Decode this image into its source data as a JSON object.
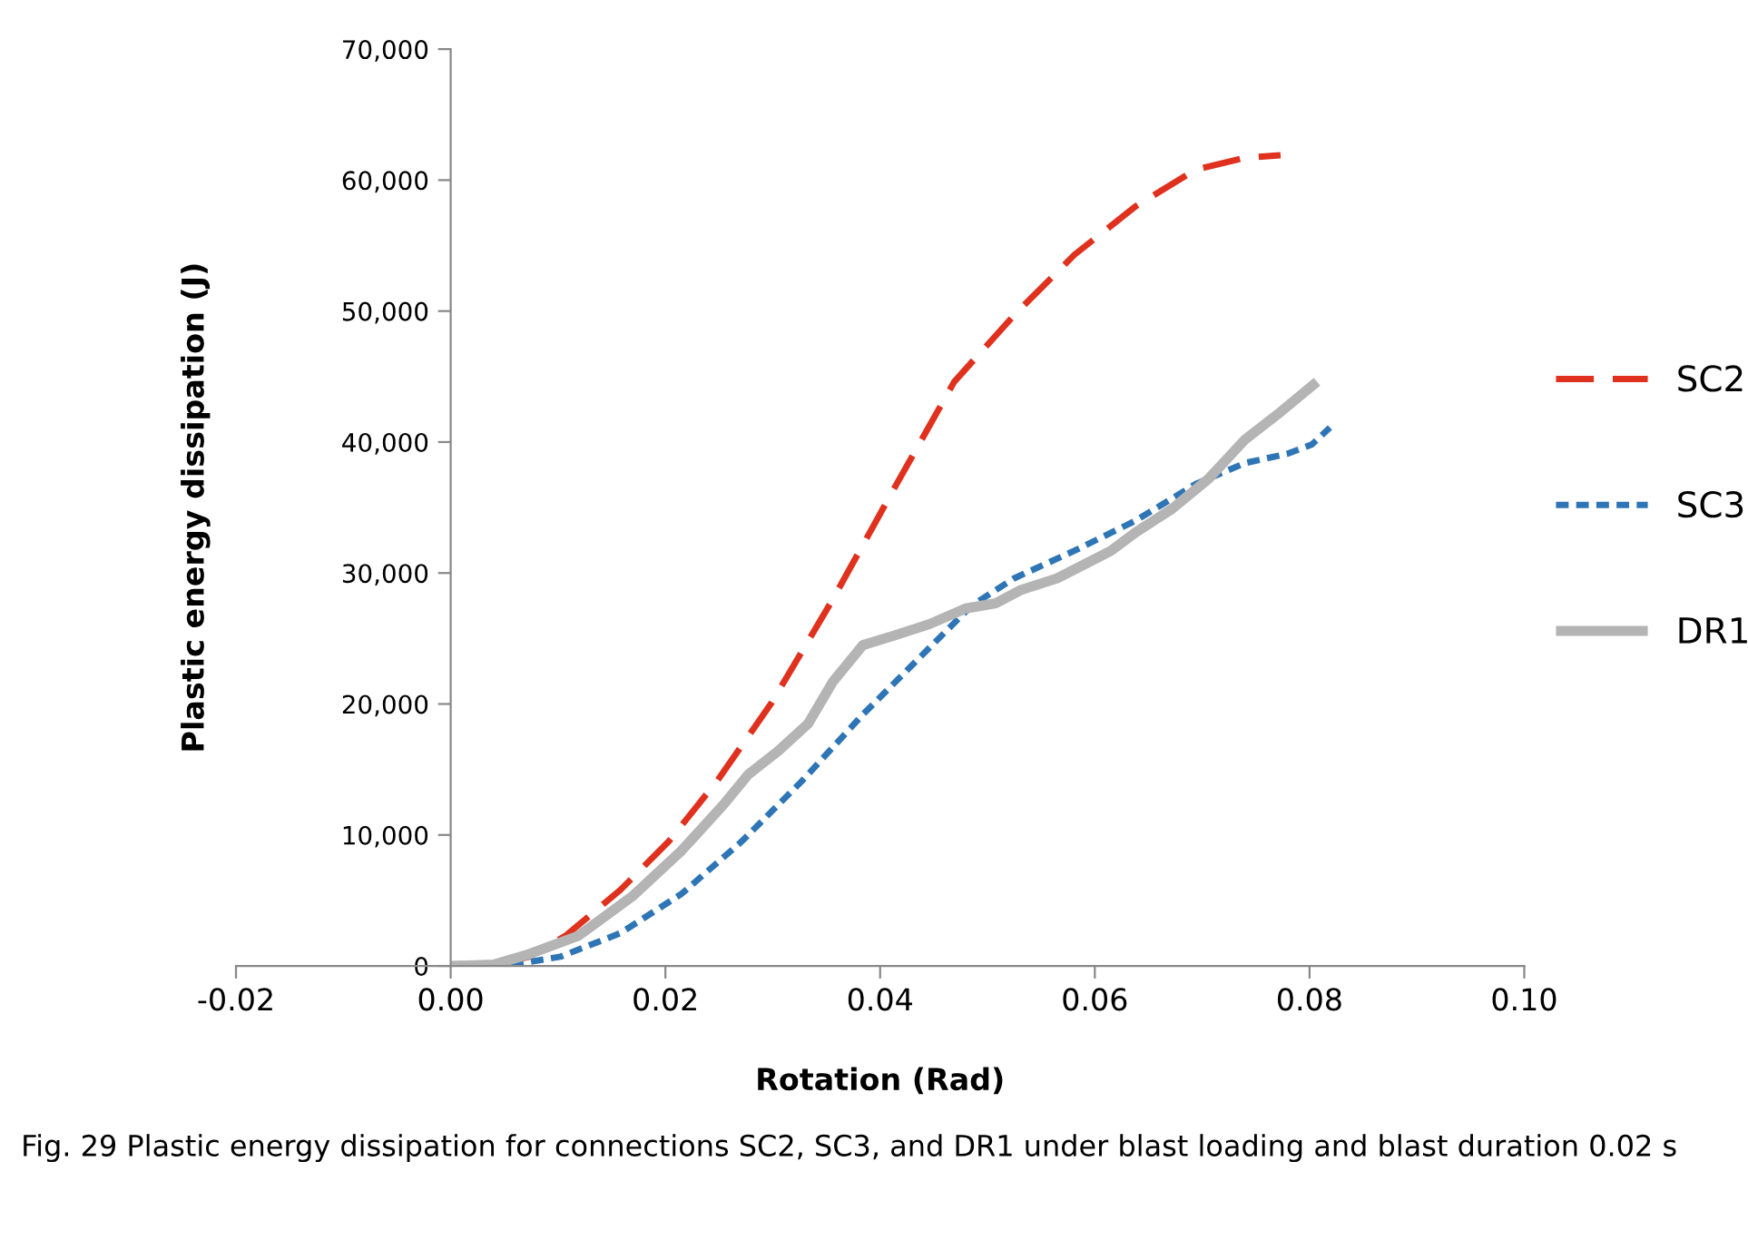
{
  "chart_data": {
    "type": "line",
    "xlabel": "Rotation (Rad)",
    "ylabel": "Plastic energy dissipation (J)",
    "annotations": [
      "Fig. 29 Plastic energy dissipation for connections SC2, SC3, and DR1 under blast loading and blast duration 0.02 s"
    ],
    "xlim": [
      -0.02,
      0.1
    ],
    "ylim": [
      0,
      70000
    ],
    "xticks": [
      {
        "value": -0.02,
        "label": "-0.02"
      },
      {
        "value": 0,
        "label": "0.00"
      },
      {
        "value": 0.02,
        "label": "0.02"
      },
      {
        "value": 0.04,
        "label": "0.04"
      },
      {
        "value": 0.06,
        "label": "0.06"
      },
      {
        "value": 0.08,
        "label": "0.08"
      },
      {
        "value": 0.1,
        "label": "0.10"
      }
    ],
    "yticks": [
      0,
      {
        "value": 10000,
        "label": "10,000"
      },
      {
        "value": 20000,
        "label": "20,000"
      },
      {
        "value": 30000,
        "label": "30,000"
      },
      {
        "value": 40000,
        "label": "40,000"
      },
      {
        "value": 50000,
        "label": "50,000"
      },
      {
        "value": 60000,
        "label": "60,000"
      },
      {
        "value": 70000,
        "label": "70,000"
      }
    ],
    "grid": false,
    "legend": "right",
    "marker": "none",
    "series": [
      {
        "name": "SC2",
        "color": "#e0301e",
        "line_style": "dashed",
        "x": [
          0,
          0.0045,
          0.0073,
          0.0107,
          0.0158,
          0.0203,
          0.0248,
          0.0299,
          0.0356,
          0.0412,
          0.0469,
          0.0525,
          0.0581,
          0.0638,
          0.0694,
          0.074,
          0.0773
        ],
        "values": [
          0,
          100,
          700,
          2300,
          5800,
          9500,
          14100,
          20100,
          28000,
          36300,
          44600,
          49700,
          54300,
          58000,
          60800,
          61700,
          61900
        ]
      },
      {
        "name": "SC3",
        "color": "#2e75b6",
        "line_style": "dotted",
        "x": [
          0,
          0.0051,
          0.0102,
          0.0158,
          0.0215,
          0.0271,
          0.0327,
          0.0384,
          0.044,
          0.0485,
          0.0525,
          0.0581,
          0.0638,
          0.0694,
          0.074,
          0.0779,
          0.0802,
          0.0819
        ],
        "values": [
          0,
          0,
          700,
          2500,
          5500,
          9500,
          14100,
          19200,
          23800,
          27500,
          29600,
          31700,
          34000,
          36800,
          38400,
          39100,
          39800,
          41100
        ]
      },
      {
        "name": "DR1",
        "color": "#b4b4b4",
        "line_style": "solid",
        "x": [
          0,
          0.004,
          0.0073,
          0.0119,
          0.0169,
          0.0215,
          0.0254,
          0.0277,
          0.0305,
          0.0333,
          0.0356,
          0.0384,
          0.0412,
          0.0446,
          0.048,
          0.0508,
          0.0531,
          0.0565,
          0.0615,
          0.0638,
          0.0672,
          0.0706,
          0.074,
          0.0773,
          0.0807
        ],
        "values": [
          0,
          100,
          900,
          2300,
          5300,
          8800,
          12300,
          14600,
          16400,
          18500,
          21700,
          24500,
          25200,
          26100,
          27300,
          27700,
          28700,
          29600,
          31700,
          33100,
          34900,
          37200,
          40200,
          42300,
          44600
        ]
      }
    ]
  }
}
